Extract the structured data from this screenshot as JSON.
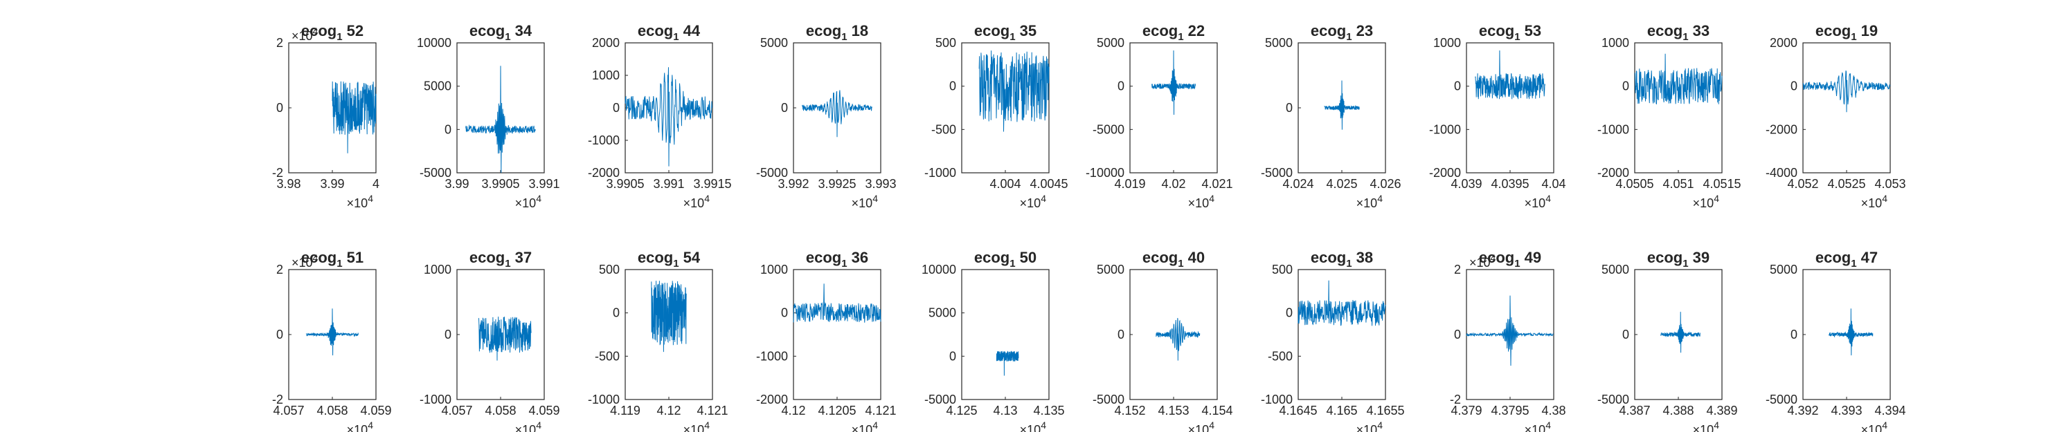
{
  "figure": {
    "line_color": "#0072BD",
    "subplots_label": "20 subplots of ECoG channel snippets"
  },
  "chart_data": [
    {
      "type": "line",
      "title": "ecog_1 52",
      "title_main": "ecog",
      "title_sub": "1",
      "title_suffix": "52",
      "xticks": [
        "3.98",
        "3.99",
        "4"
      ],
      "xlim": [
        39800,
        40000
      ],
      "xexp": "4",
      "yticks": [
        "-2",
        "0",
        "2"
      ],
      "ylim": [
        -20000,
        20000
      ],
      "yexp": "4",
      "burst": {
        "start": 39900,
        "end": 40000,
        "amp": 0.42,
        "spike": 0.7,
        "shape": "block"
      }
    },
    {
      "type": "line",
      "title": "ecog_1 34",
      "title_main": "ecog",
      "title_sub": "1",
      "title_suffix": "34",
      "xticks": [
        "3.99",
        "3.9905",
        "3.991"
      ],
      "xlim": [
        39900,
        39910
      ],
      "xexp": "4",
      "yticks": [
        "-5000",
        "0",
        "5000",
        "10000"
      ],
      "ylim": [
        -5000,
        10000
      ],
      "yexp": "",
      "burst": {
        "start": 39901,
        "end": 39909,
        "amp": 0.06,
        "spike": 0.98,
        "shape": "spike"
      }
    },
    {
      "type": "line",
      "title": "ecog_1 44",
      "title_main": "ecog",
      "title_sub": "1",
      "title_suffix": "44",
      "xticks": [
        "3.9905",
        "3.991",
        "3.9915"
      ],
      "xlim": [
        39905,
        39915
      ],
      "xexp": "4",
      "yticks": [
        "-2000",
        "-1000",
        "0",
        "1000",
        "2000"
      ],
      "ylim": [
        -2000,
        2000
      ],
      "yexp": "",
      "burst": {
        "start": 39905,
        "end": 39915,
        "amp": 0.18,
        "spike": 0.9,
        "shape": "oscill"
      }
    },
    {
      "type": "line",
      "title": "ecog_1 18",
      "title_main": "ecog",
      "title_sub": "1",
      "title_suffix": "18",
      "xticks": [
        "3.992",
        "3.9925",
        "3.993"
      ],
      "xlim": [
        39920,
        39930
      ],
      "xexp": "4",
      "yticks": [
        "-5000",
        "0",
        "5000"
      ],
      "ylim": [
        -5000,
        5000
      ],
      "yexp": "",
      "burst": {
        "start": 39921,
        "end": 39929,
        "amp": 0.05,
        "spike": 0.45,
        "shape": "oscill"
      }
    },
    {
      "type": "line",
      "title": "ecog_1 35",
      "title_main": "ecog",
      "title_sub": "1",
      "title_suffix": "35",
      "xticks": [
        "4.004",
        "4.0045"
      ],
      "xlim": [
        40035,
        40045
      ],
      "xexp": "4",
      "yticks": [
        "-1000",
        "-500",
        "0",
        "500"
      ],
      "ylim": [
        -1000,
        500
      ],
      "yexp": "",
      "burst": {
        "start": 40037,
        "end": 40045,
        "amp": 0.55,
        "spike": 0.7,
        "shape": "block"
      }
    },
    {
      "type": "line",
      "title": "ecog_1 22",
      "title_main": "ecog",
      "title_sub": "1",
      "title_suffix": "22",
      "xticks": [
        "4.019",
        "4.02",
        "4.021"
      ],
      "xlim": [
        40190,
        40210
      ],
      "xexp": "4",
      "yticks": [
        "-10000",
        "-5000",
        "0",
        "5000"
      ],
      "ylim": [
        -10000,
        5000
      ],
      "yexp": "",
      "burst": {
        "start": 40195,
        "end": 40205,
        "amp": 0.04,
        "spike": 0.55,
        "shape": "spike"
      }
    },
    {
      "type": "line",
      "title": "ecog_1 23",
      "title_main": "ecog",
      "title_sub": "1",
      "title_suffix": "23",
      "xticks": [
        "4.024",
        "4.025",
        "4.026"
      ],
      "xlim": [
        40240,
        40260
      ],
      "xexp": "4",
      "yticks": [
        "-5000",
        "0",
        "5000"
      ],
      "ylim": [
        -5000,
        5000
      ],
      "yexp": "",
      "burst": {
        "start": 40246,
        "end": 40254,
        "amp": 0.03,
        "spike": 0.42,
        "shape": "spike"
      }
    },
    {
      "type": "line",
      "title": "ecog_1 53",
      "title_main": "ecog",
      "title_sub": "1",
      "title_suffix": "53",
      "xticks": [
        "4.039",
        "4.0395",
        "4.04"
      ],
      "xlim": [
        40390,
        40400
      ],
      "xexp": "4",
      "yticks": [
        "-2000",
        "-1000",
        "0",
        "1000"
      ],
      "ylim": [
        -2000,
        1000
      ],
      "yexp": "",
      "burst": {
        "start": 40391,
        "end": 40399,
        "amp": 0.2,
        "spike": 0.55,
        "shape": "block"
      }
    },
    {
      "type": "line",
      "title": "ecog_1 33",
      "title_main": "ecog",
      "title_sub": "1",
      "title_suffix": "33",
      "xticks": [
        "4.0505",
        "4.051",
        "4.0515"
      ],
      "xlim": [
        40505,
        40515
      ],
      "xexp": "4",
      "yticks": [
        "-2000",
        "-1000",
        "0",
        "1000"
      ],
      "ylim": [
        -2000,
        1000
      ],
      "yexp": "",
      "burst": {
        "start": 40505,
        "end": 40515,
        "amp": 0.28,
        "spike": 0.5,
        "shape": "block"
      }
    },
    {
      "type": "line",
      "title": "ecog_1 19",
      "title_main": "ecog",
      "title_sub": "1",
      "title_suffix": "19",
      "xticks": [
        "4.052",
        "4.0525",
        "4.053"
      ],
      "xlim": [
        40520,
        40530
      ],
      "xexp": "4",
      "yticks": [
        "-4000",
        "-2000",
        "0",
        "2000"
      ],
      "ylim": [
        -4000,
        2000
      ],
      "yexp": "",
      "burst": {
        "start": 40520,
        "end": 40530,
        "amp": 0.06,
        "spike": 0.4,
        "shape": "oscill"
      }
    },
    {
      "type": "line",
      "title": "ecog_1 51",
      "title_main": "ecog",
      "title_sub": "1",
      "title_suffix": "51",
      "xticks": [
        "4.057",
        "4.058",
        "4.059"
      ],
      "xlim": [
        40570,
        40590
      ],
      "xexp": "4",
      "yticks": [
        "-2",
        "0",
        "2"
      ],
      "ylim": [
        -20000,
        20000
      ],
      "yexp": "4",
      "burst": {
        "start": 40574,
        "end": 40586,
        "amp": 0.02,
        "spike": 0.4,
        "shape": "spike"
      }
    },
    {
      "type": "line",
      "title": "ecog_1 37",
      "title_main": "ecog",
      "title_sub": "1",
      "title_suffix": "37",
      "xticks": [
        "4.057",
        "4.058",
        "4.059"
      ],
      "xlim": [
        40570,
        40590
      ],
      "xexp": "4",
      "yticks": [
        "-1000",
        "0",
        "1000"
      ],
      "ylim": [
        -1000,
        1000
      ],
      "yexp": "",
      "burst": {
        "start": 40575,
        "end": 40587,
        "amp": 0.28,
        "spike": 0.4,
        "shape": "block"
      }
    },
    {
      "type": "line",
      "title": "ecog_1 54",
      "title_main": "ecog",
      "title_sub": "1",
      "title_suffix": "54",
      "xticks": [
        "4.119",
        "4.12",
        "4.121"
      ],
      "xlim": [
        41190,
        41210
      ],
      "xexp": "4",
      "yticks": [
        "-1000",
        "-500",
        "0",
        "500"
      ],
      "ylim": [
        -1000,
        500
      ],
      "yexp": "",
      "burst": {
        "start": 41196,
        "end": 41204,
        "amp": 0.5,
        "spike": 0.6,
        "shape": "block"
      }
    },
    {
      "type": "line",
      "title": "ecog_1 36",
      "title_main": "ecog",
      "title_sub": "1",
      "title_suffix": "36",
      "xticks": [
        "4.12",
        "4.1205",
        "4.121"
      ],
      "xlim": [
        41200,
        41210
      ],
      "xexp": "4",
      "yticks": [
        "-2000",
        "-1000",
        "0",
        "1000"
      ],
      "ylim": [
        -2000,
        1000
      ],
      "yexp": "",
      "burst": {
        "start": 41200,
        "end": 41210,
        "amp": 0.15,
        "spike": 0.45,
        "shape": "block"
      }
    },
    {
      "type": "line",
      "title": "ecog_1 50",
      "title_main": "ecog",
      "title_sub": "1",
      "title_suffix": "50",
      "xticks": [
        "4.125",
        "4.13",
        "4.135"
      ],
      "xlim": [
        41250,
        41350
      ],
      "xexp": "4",
      "yticks": [
        "-5000",
        "0",
        "5000",
        "10000"
      ],
      "ylim": [
        -5000,
        10000
      ],
      "yexp": "",
      "burst": {
        "start": 41290,
        "end": 41315,
        "amp": 0.08,
        "spike": 0.3,
        "shape": "block"
      }
    },
    {
      "type": "line",
      "title": "ecog_1 40",
      "title_main": "ecog",
      "title_sub": "1",
      "title_suffix": "40",
      "xticks": [
        "4.152",
        "4.153",
        "4.154"
      ],
      "xlim": [
        41520,
        41540
      ],
      "xexp": "4",
      "yticks": [
        "-5000",
        "0",
        "5000"
      ],
      "ylim": [
        -5000,
        5000
      ],
      "yexp": "",
      "burst": {
        "start": 41526,
        "end": 41536,
        "amp": 0.04,
        "spike": 0.4,
        "shape": "oscill"
      }
    },
    {
      "type": "line",
      "title": "ecog_1 38",
      "title_main": "ecog",
      "title_sub": "1",
      "title_suffix": "38",
      "xticks": [
        "4.1645",
        "4.165",
        "4.1655"
      ],
      "xlim": [
        41645,
        41655
      ],
      "xexp": "4",
      "yticks": [
        "-1000",
        "-500",
        "0",
        "500"
      ],
      "ylim": [
        -1000,
        500
      ],
      "yexp": "",
      "burst": {
        "start": 41645,
        "end": 41655,
        "amp": 0.2,
        "spike": 0.5,
        "shape": "block"
      }
    },
    {
      "type": "line",
      "title": "ecog_1 49",
      "title_main": "ecog",
      "title_sub": "1",
      "title_suffix": "49",
      "xticks": [
        "4.379",
        "4.3795",
        "4.38"
      ],
      "xlim": [
        43790,
        43800
      ],
      "xexp": "4",
      "yticks": [
        "-2",
        "0",
        "2"
      ],
      "ylim": [
        -20000,
        20000
      ],
      "yexp": "4",
      "burst": {
        "start": 43790,
        "end": 43800,
        "amp": 0.02,
        "spike": 0.6,
        "shape": "spike"
      }
    },
    {
      "type": "line",
      "title": "ecog_1 39",
      "title_main": "ecog",
      "title_sub": "1",
      "title_suffix": "39",
      "xticks": [
        "4.387",
        "4.388",
        "4.389"
      ],
      "xlim": [
        43870,
        43890
      ],
      "xexp": "4",
      "yticks": [
        "-5000",
        "0",
        "5000"
      ],
      "ylim": [
        -5000,
        5000
      ],
      "yexp": "",
      "burst": {
        "start": 43876,
        "end": 43885,
        "amp": 0.03,
        "spike": 0.35,
        "shape": "spike"
      }
    },
    {
      "type": "line",
      "title": "ecog_1 47",
      "title_main": "ecog",
      "title_sub": "1",
      "title_suffix": "47",
      "xticks": [
        "4.392",
        "4.393",
        "4.394"
      ],
      "xlim": [
        43920,
        43940
      ],
      "xexp": "4",
      "yticks": [
        "-5000",
        "0",
        "5000"
      ],
      "ylim": [
        -5000,
        5000
      ],
      "yexp": "",
      "burst": {
        "start": 43926,
        "end": 43936,
        "amp": 0.03,
        "spike": 0.4,
        "shape": "spike"
      }
    }
  ]
}
